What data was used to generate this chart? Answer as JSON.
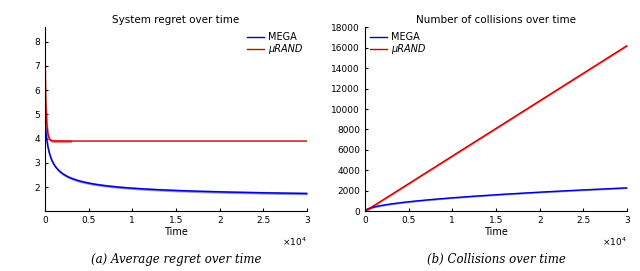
{
  "left_title": "System regret over time",
  "right_title": "Number of collisions over time",
  "xlabel": "Time",
  "left_caption": "(a) Average regret over time",
  "right_caption": "(b) Collisions over time",
  "x_max": 30000,
  "left_ylim": [
    1.0,
    8.6
  ],
  "left_yticks": [
    2,
    3,
    4,
    5,
    6,
    7,
    8
  ],
  "right_ylim": [
    0,
    18000
  ],
  "right_yticks": [
    0,
    2000,
    4000,
    6000,
    8000,
    10000,
    12000,
    14000,
    16000,
    18000
  ],
  "mega_color": "#0000cc",
  "rand_color": "#cc0000",
  "legend_mega": "MEGA",
  "legend_rand": "μRAND",
  "background_color": "#ffffff",
  "title_fontsize": 7.5,
  "tick_fontsize": 6.5,
  "legend_fontsize": 7,
  "caption_fontsize": 8.5,
  "xlabel_fontsize": 7
}
